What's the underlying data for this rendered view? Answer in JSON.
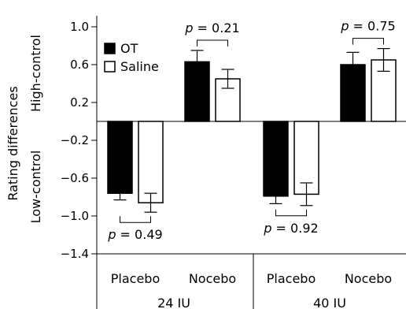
{
  "chart_data": {
    "type": "bar",
    "ylabel": "Rating differences",
    "ylabel_top": "High-control",
    "ylabel_bottom": "Low-control",
    "ylim": [
      -1.4,
      1.0
    ],
    "yticks": [
      "1.0",
      "0.6",
      "0.2",
      "−0.2",
      "−0.6",
      "−1.0",
      "−1.4"
    ],
    "ytick_values": [
      1.0,
      0.6,
      0.2,
      -0.2,
      -0.6,
      -1.0,
      -1.4
    ],
    "groups": [
      {
        "label": "24 IU",
        "categories": [
          "Placebo",
          "Nocebo"
        ]
      },
      {
        "label": "40 IU",
        "categories": [
          "Placebo",
          "Nocebo"
        ]
      }
    ],
    "series": [
      {
        "name": "OT",
        "color": "#000000",
        "values": [
          -0.76,
          0.63,
          -0.79,
          0.6
        ],
        "errors": [
          0.07,
          0.12,
          0.08,
          0.13
        ]
      },
      {
        "name": "Saline",
        "color": "#ffffff",
        "values": [
          -0.86,
          0.45,
          -0.77,
          0.65
        ],
        "errors": [
          0.1,
          0.1,
          0.12,
          0.12
        ]
      }
    ],
    "annotations": [
      {
        "prefix": "p",
        "text": " = 0.49",
        "bar_index": 0,
        "position": "below"
      },
      {
        "prefix": "p",
        "text": " = 0.21",
        "bar_index": 1,
        "position": "above"
      },
      {
        "prefix": "p",
        "text": " = 0.92",
        "bar_index": 2,
        "position": "below"
      },
      {
        "prefix": "p",
        "text": " = 0.75",
        "bar_index": 3,
        "position": "above"
      }
    ],
    "legend": {
      "position": "top-left"
    }
  }
}
